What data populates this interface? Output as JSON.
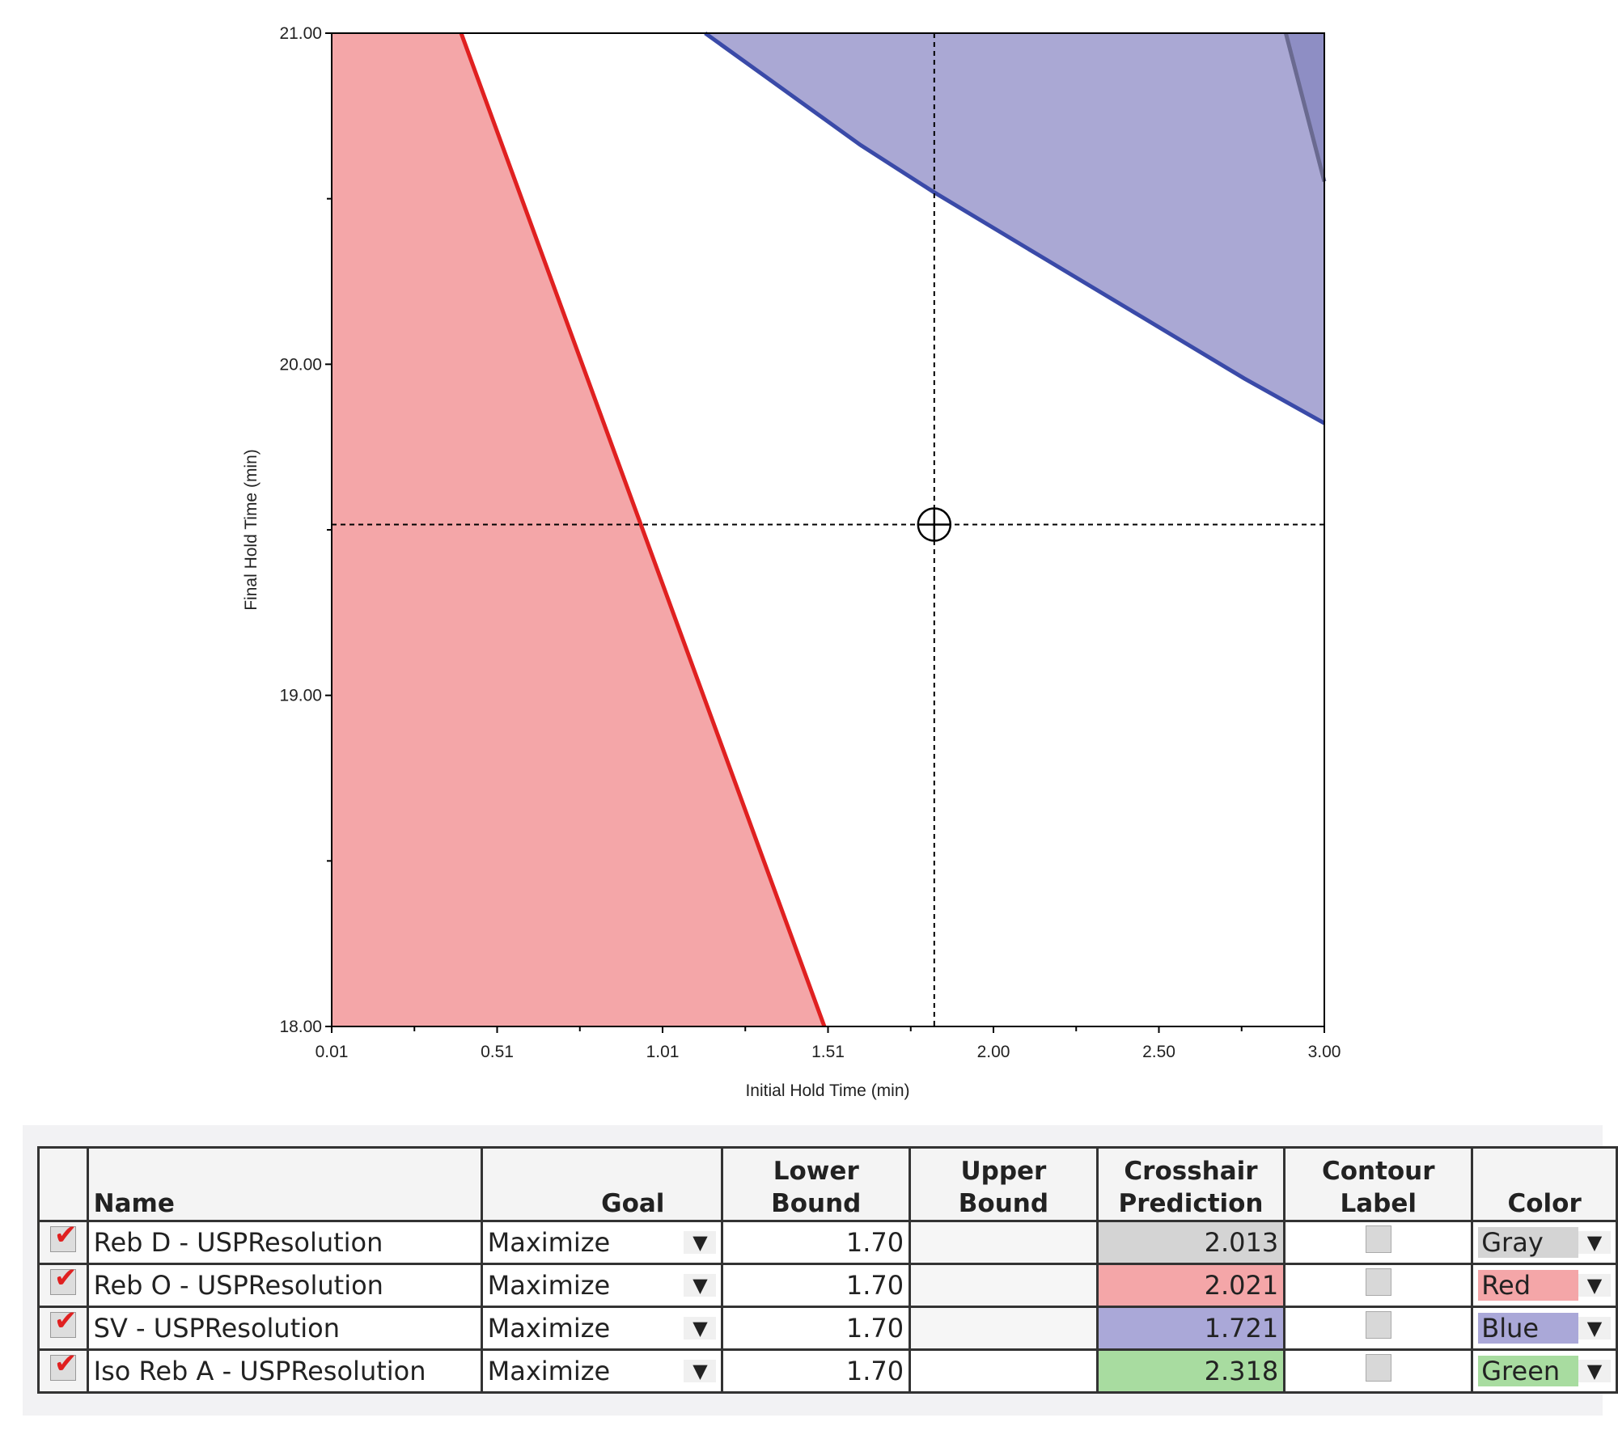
{
  "chart_data": {
    "type": "area",
    "xlabel": "Initial Hold Time (min)",
    "ylabel": "Final Hold Time (min)",
    "xlim": [
      0.01,
      3.0
    ],
    "ylim": [
      18.0,
      21.0
    ],
    "xticks": [
      "0.01",
      "0.51",
      "1.01",
      "1.51",
      "2.00",
      "2.50",
      "3.00"
    ],
    "yticks": [
      "18.00",
      "19.00",
      "20.00",
      "21.00"
    ],
    "crosshair": {
      "x": 1.825,
      "y": 19.516
    },
    "series": [
      {
        "name": "Reb O - USPResolution",
        "color": "#e02020",
        "fill": "#f4a6a8",
        "fill_side": "left",
        "x": [
          0.4,
          1.494
        ],
        "y": [
          21.0,
          18.0
        ]
      },
      {
        "name": "SV - USPResolution",
        "color": "#3a4aa8",
        "fill": "#aaa8d4",
        "fill_side": "above",
        "x": [
          1.135,
          1.322,
          1.603,
          1.822,
          2.134,
          2.447,
          2.759,
          3.0
        ],
        "y": [
          21.0,
          20.865,
          20.662,
          20.521,
          20.333,
          20.145,
          19.957,
          19.822
        ]
      },
      {
        "name": "overlap",
        "color": "#6a6a90",
        "fill": "#8e8ec4",
        "fill_side": "right",
        "x": [
          2.884,
          3.0
        ],
        "y": [
          21.0,
          20.552
        ]
      }
    ]
  },
  "table": {
    "headers": {
      "name": "Name",
      "goal": "Goal",
      "lower1": "Lower",
      "lower2": "Bound",
      "upper1": "Upper",
      "upper2": "Bound",
      "cross1": "Crosshair",
      "cross2": "Prediction",
      "contour1": "Contour",
      "contour2": "Label",
      "color": "Color"
    },
    "rows": [
      {
        "name": "Reb D - USPResolution",
        "goal": "Maximize",
        "lower": "1.70",
        "upper": "",
        "prediction": "2.013",
        "color": "Gray",
        "hex": "#d4d4d4"
      },
      {
        "name": "Reb O - USPResolution",
        "goal": "Maximize",
        "lower": "1.70",
        "upper": "",
        "prediction": "2.021",
        "color": "Red",
        "hex": "#f4a6a8"
      },
      {
        "name": "SV - USPResolution",
        "goal": "Maximize",
        "lower": "1.70",
        "upper": "",
        "prediction": "1.721",
        "color": "Blue",
        "hex": "#aaa8d8"
      },
      {
        "name": "Iso Reb A - USPResolution",
        "goal": "Maximize",
        "lower": "1.70",
        "upper": "",
        "prediction": "2.318",
        "color": "Green",
        "hex": "#a8dca0"
      }
    ]
  }
}
